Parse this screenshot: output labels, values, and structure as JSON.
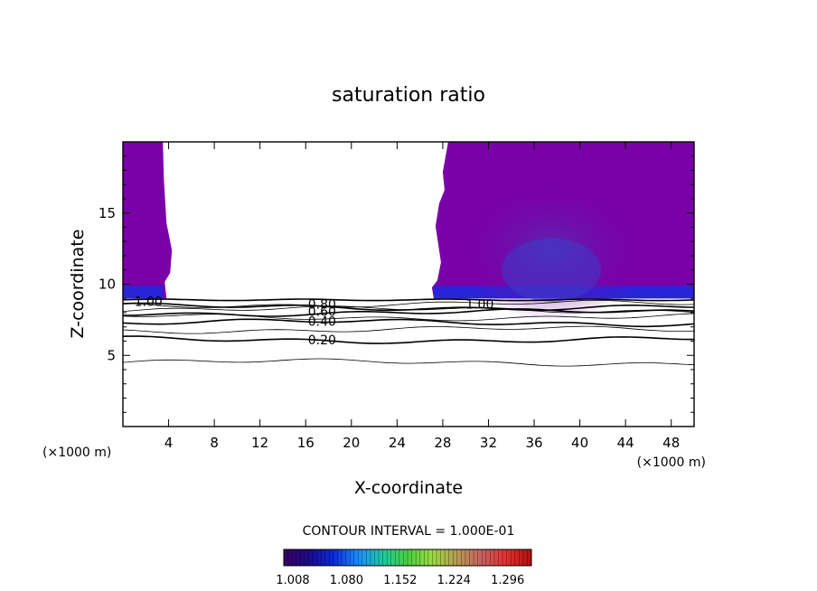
{
  "chart_data": {
    "type": "heatmap",
    "title": "saturation ratio",
    "xlabel": "X-coordinate",
    "ylabel": "Z-coordinate",
    "x_unit_label": "(×1000 m)",
    "y_unit_label": "(×1000 m)",
    "xlim": [
      0,
      50
    ],
    "ylim": [
      0,
      20
    ],
    "x_ticks": [
      4,
      8,
      12,
      16,
      20,
      24,
      28,
      32,
      36,
      40,
      44,
      48
    ],
    "y_ticks": [
      5,
      10,
      15
    ],
    "contour_interval_text": "CONTOUR INTERVAL = 1.000E-01",
    "contour_labels": [
      {
        "text": "1.00",
        "x": 1.0,
        "z": 8.8
      },
      {
        "text": "1.00",
        "x": 30.0,
        "z": 8.6
      },
      {
        "text": "0.80",
        "x": 16.2,
        "z": 8.6
      },
      {
        "text": "0.60",
        "x": 16.2,
        "z": 8.1
      },
      {
        "text": "0.40",
        "x": 16.2,
        "z": 7.4
      },
      {
        "text": "0.20",
        "x": 16.2,
        "z": 6.1
      }
    ],
    "contour_levels": [
      {
        "level": 0.1,
        "z": 4.5,
        "bold": false
      },
      {
        "level": 0.2,
        "z": 6.1,
        "bold": true
      },
      {
        "level": 0.3,
        "z": 6.8,
        "bold": false
      },
      {
        "level": 0.4,
        "z": 7.3,
        "bold": true
      },
      {
        "level": 0.5,
        "z": 7.7,
        "bold": false
      },
      {
        "level": 0.6,
        "z": 8.0,
        "bold": true
      },
      {
        "level": 0.7,
        "z": 8.2,
        "bold": false
      },
      {
        "level": 0.8,
        "z": 8.4,
        "bold": true
      },
      {
        "level": 0.9,
        "z": 8.6,
        "bold": false
      }
    ],
    "supersaturated_regions": [
      {
        "x_start": 0,
        "x_end": 3.5,
        "z_bottom": 9.0,
        "z_top": 20
      },
      {
        "x_start": 28.0,
        "x_end": 50,
        "z_bottom": 9.0,
        "z_top": 20
      }
    ],
    "colorbar": {
      "min": 1.008,
      "max": 1.34,
      "tick_labels": [
        "1.008",
        "1.080",
        "1.152",
        "1.224",
        "1.296"
      ],
      "colors": [
        "#3b0060",
        "#1a0a8c",
        "#0a2ad8",
        "#1b8cff",
        "#20c9a0",
        "#4ad040",
        "#9adb40",
        "#b89a50",
        "#c86060",
        "#e03030",
        "#b01010"
      ]
    },
    "background_color": "#7a00a8"
  }
}
